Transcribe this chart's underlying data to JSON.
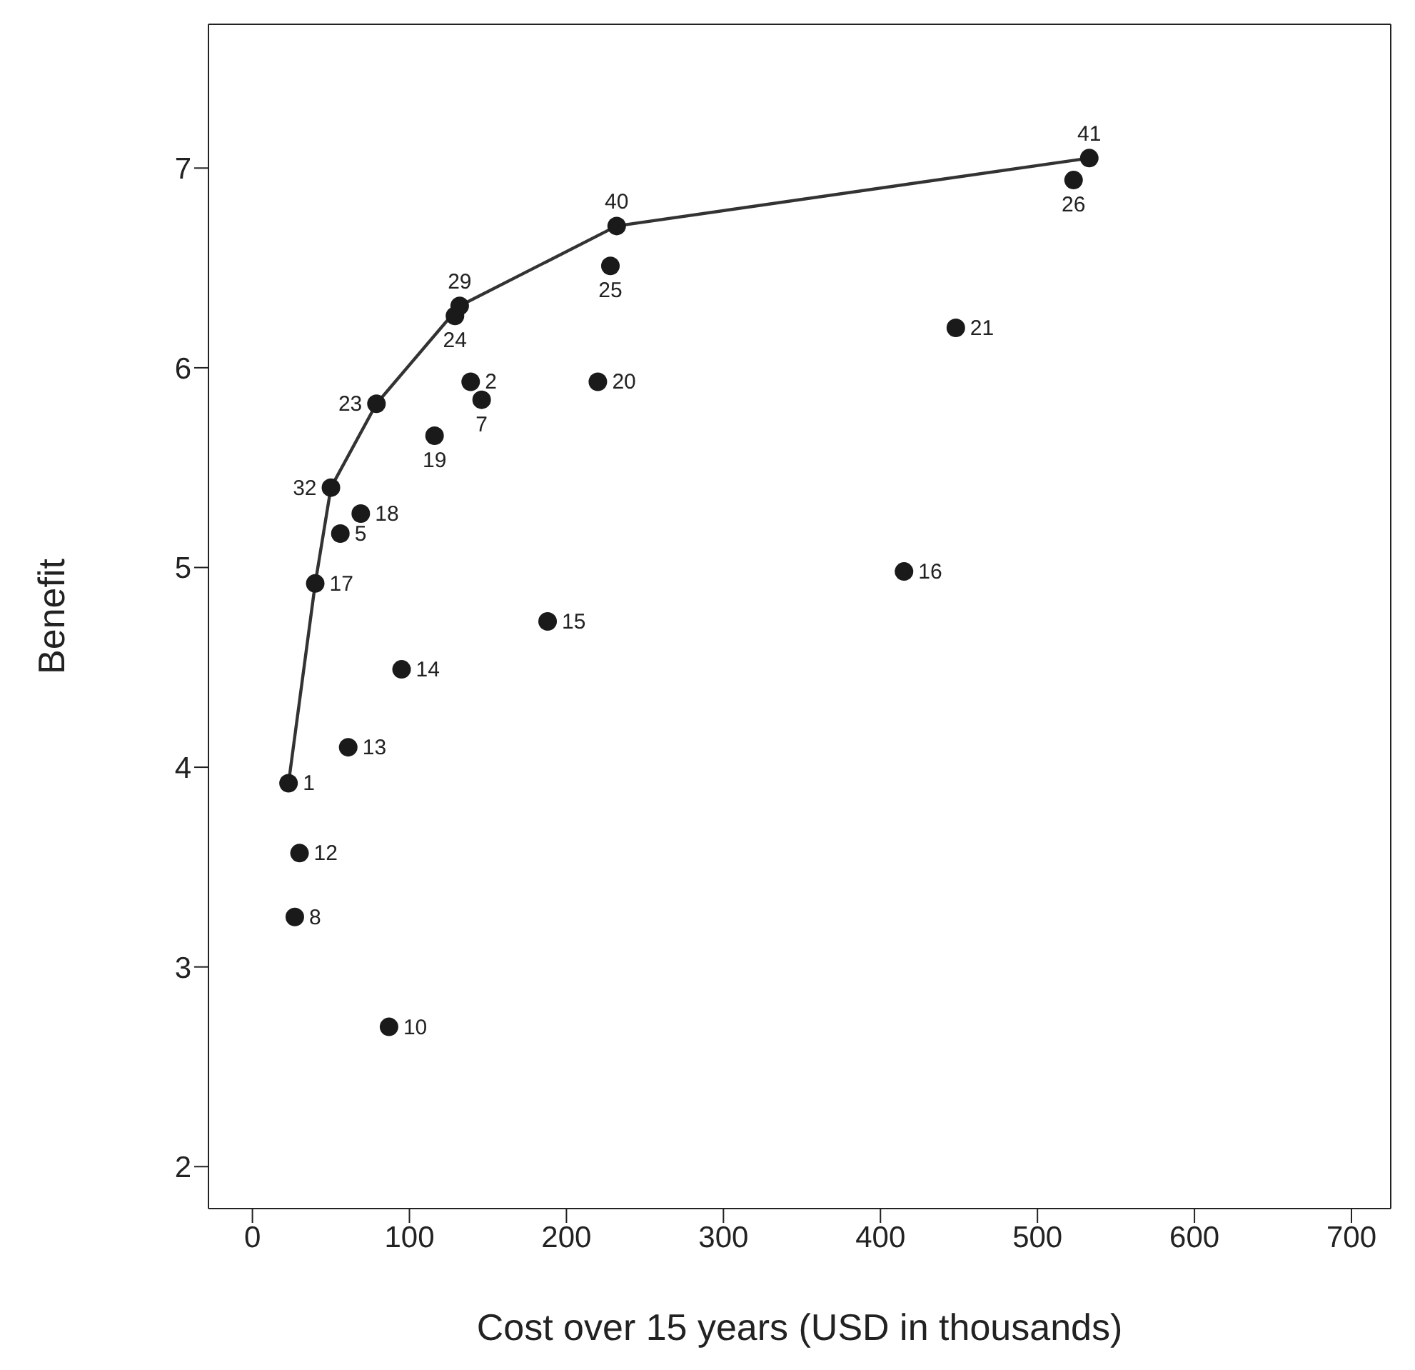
{
  "chart_data": {
    "type": "scatter",
    "xlabel": "Cost over 15 years (USD in thousands)",
    "ylabel": "Benefit",
    "xlim": [
      -28,
      725
    ],
    "ylim": [
      1.79,
      7.72
    ],
    "xticks": [
      0,
      100,
      200,
      300,
      400,
      500,
      600,
      700
    ],
    "yticks": [
      2,
      3,
      4,
      5,
      6,
      7
    ],
    "grid": false,
    "legend": false,
    "marker": "circle",
    "series": [
      {
        "color": "#1a1a1a",
        "x": [
          23,
          139,
          56,
          146,
          27,
          87,
          30,
          61,
          95,
          188,
          415,
          40,
          69,
          116,
          220,
          448,
          79,
          129,
          228,
          523,
          132,
          50,
          232,
          533
        ],
        "values": [
          3.92,
          5.93,
          5.17,
          5.84,
          3.25,
          2.7,
          3.57,
          4.1,
          4.49,
          4.73,
          4.98,
          4.92,
          5.27,
          5.66,
          5.93,
          6.2,
          5.82,
          6.26,
          6.51,
          6.94,
          6.31,
          5.4,
          6.71,
          7.05
        ]
      },
      {
        "type": "line",
        "color": "#333333",
        "marker": "none",
        "x": [
          23,
          40,
          50,
          79,
          132,
          232,
          533
        ],
        "values": [
          3.92,
          4.92,
          5.4,
          5.82,
          6.31,
          6.71,
          7.05
        ]
      }
    ],
    "annotations": [
      {
        "text": "1",
        "x": 23,
        "y": 3.92
      },
      {
        "text": "2",
        "x": 139,
        "y": 5.93
      },
      {
        "text": "5",
        "x": 56,
        "y": 5.17
      },
      {
        "text": "7",
        "x": 146,
        "y": 5.84
      },
      {
        "text": "8",
        "x": 27,
        "y": 3.25
      },
      {
        "text": "10",
        "x": 87,
        "y": 2.7
      },
      {
        "text": "12",
        "x": 30,
        "y": 3.57
      },
      {
        "text": "13",
        "x": 61,
        "y": 4.1
      },
      {
        "text": "14",
        "x": 95,
        "y": 4.49
      },
      {
        "text": "15",
        "x": 188,
        "y": 4.73
      },
      {
        "text": "16",
        "x": 415,
        "y": 4.98
      },
      {
        "text": "17",
        "x": 40,
        "y": 4.92
      },
      {
        "text": "18",
        "x": 69,
        "y": 5.27
      },
      {
        "text": "19",
        "x": 116,
        "y": 5.66
      },
      {
        "text": "20",
        "x": 220,
        "y": 5.93
      },
      {
        "text": "21",
        "x": 448,
        "y": 6.2
      },
      {
        "text": "23",
        "x": 79,
        "y": 5.82
      },
      {
        "text": "24",
        "x": 129,
        "y": 6.26
      },
      {
        "text": "25",
        "x": 228,
        "y": 6.51
      },
      {
        "text": "26",
        "x": 523,
        "y": 6.94
      },
      {
        "text": "29",
        "x": 132,
        "y": 6.31
      },
      {
        "text": "32",
        "x": 50,
        "y": 5.4
      },
      {
        "text": "40",
        "x": 232,
        "y": 6.71
      },
      {
        "text": "41",
        "x": 533,
        "y": 7.05
      }
    ]
  }
}
